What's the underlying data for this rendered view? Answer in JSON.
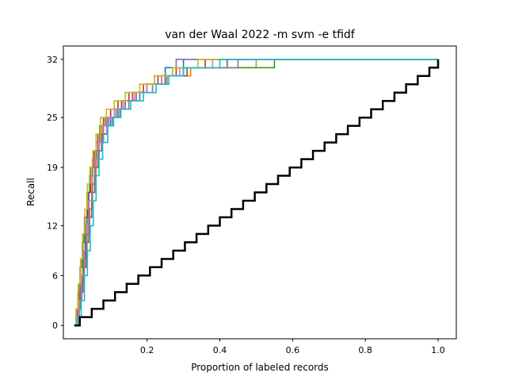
{
  "chart_data": {
    "type": "line",
    "title": "van der Waal 2022 -m svm -e tfidf",
    "xlabel": "Proportion of labeled records",
    "ylabel": "Recall",
    "xlim": [
      -0.03,
      1.05
    ],
    "ylim": [
      -1.6,
      33.6
    ],
    "x_ticks": [
      0.2,
      0.4,
      0.6,
      0.8,
      1.0
    ],
    "x_tick_labels": [
      "0.2",
      "0.4",
      "0.6",
      "0.8",
      "1.0"
    ],
    "y_ticks": [
      0,
      6,
      12,
      19,
      25,
      32
    ],
    "y_tick_labels": [
      "0",
      "6",
      "12",
      "19",
      "25",
      "32"
    ],
    "grid": false,
    "legend": "none",
    "total_relevant": 32,
    "series": [
      {
        "color": "#1f77b4",
        "points": [
          [
            0.0,
            0
          ],
          [
            0.005,
            1
          ],
          [
            0.01,
            2
          ],
          [
            0.015,
            4
          ],
          [
            0.02,
            6
          ],
          [
            0.025,
            8
          ],
          [
            0.03,
            11
          ],
          [
            0.035,
            14
          ],
          [
            0.04,
            16
          ],
          [
            0.05,
            18
          ],
          [
            0.06,
            20
          ],
          [
            0.065,
            22
          ],
          [
            0.08,
            24
          ],
          [
            0.1,
            25
          ],
          [
            0.12,
            26
          ],
          [
            0.15,
            27
          ],
          [
            0.18,
            28
          ],
          [
            0.2,
            29
          ],
          [
            0.22,
            30
          ],
          [
            0.25,
            31
          ],
          [
            0.3,
            32
          ],
          [
            1.0,
            32
          ]
        ]
      },
      {
        "color": "#ff7f0e",
        "points": [
          [
            0.0,
            0
          ],
          [
            0.007,
            2
          ],
          [
            0.014,
            4
          ],
          [
            0.02,
            6
          ],
          [
            0.027,
            9
          ],
          [
            0.033,
            12
          ],
          [
            0.04,
            15
          ],
          [
            0.05,
            18
          ],
          [
            0.06,
            21
          ],
          [
            0.075,
            24
          ],
          [
            0.09,
            25
          ],
          [
            0.11,
            26
          ],
          [
            0.14,
            27
          ],
          [
            0.17,
            28
          ],
          [
            0.2,
            29
          ],
          [
            0.24,
            30
          ],
          [
            0.32,
            31
          ],
          [
            0.5,
            32
          ],
          [
            1.0,
            32
          ]
        ]
      },
      {
        "color": "#2ca02c",
        "points": [
          [
            0.0,
            0
          ],
          [
            0.005,
            2
          ],
          [
            0.01,
            4
          ],
          [
            0.016,
            7
          ],
          [
            0.022,
            10
          ],
          [
            0.028,
            13
          ],
          [
            0.035,
            16
          ],
          [
            0.042,
            18
          ],
          [
            0.05,
            20
          ],
          [
            0.06,
            22
          ],
          [
            0.07,
            24
          ],
          [
            0.085,
            25
          ],
          [
            0.1,
            26
          ],
          [
            0.13,
            27
          ],
          [
            0.16,
            28
          ],
          [
            0.2,
            29
          ],
          [
            0.25,
            30
          ],
          [
            0.3,
            31
          ],
          [
            0.54,
            31
          ],
          [
            0.55,
            32
          ],
          [
            1.0,
            32
          ]
        ]
      },
      {
        "color": "#d62728",
        "points": [
          [
            0.0,
            0
          ],
          [
            0.006,
            2
          ],
          [
            0.012,
            5
          ],
          [
            0.018,
            8
          ],
          [
            0.024,
            11
          ],
          [
            0.03,
            13
          ],
          [
            0.037,
            16
          ],
          [
            0.045,
            19
          ],
          [
            0.055,
            21
          ],
          [
            0.065,
            23
          ],
          [
            0.08,
            25
          ],
          [
            0.1,
            26
          ],
          [
            0.12,
            27
          ],
          [
            0.15,
            28
          ],
          [
            0.19,
            29
          ],
          [
            0.23,
            30
          ],
          [
            0.28,
            31
          ],
          [
            0.36,
            32
          ],
          [
            1.0,
            32
          ]
        ]
      },
      {
        "color": "#9467bd",
        "points": [
          [
            0.0,
            0
          ],
          [
            0.007,
            1
          ],
          [
            0.014,
            3
          ],
          [
            0.021,
            5
          ],
          [
            0.028,
            8
          ],
          [
            0.035,
            11
          ],
          [
            0.042,
            14
          ],
          [
            0.05,
            17
          ],
          [
            0.058,
            20
          ],
          [
            0.068,
            22
          ],
          [
            0.08,
            24
          ],
          [
            0.095,
            25
          ],
          [
            0.115,
            26
          ],
          [
            0.14,
            27
          ],
          [
            0.17,
            28
          ],
          [
            0.2,
            29
          ],
          [
            0.24,
            30
          ],
          [
            0.27,
            31
          ],
          [
            0.28,
            32
          ],
          [
            1.0,
            32
          ]
        ]
      },
      {
        "color": "#8c564b",
        "points": [
          [
            0.0,
            0
          ],
          [
            0.008,
            2
          ],
          [
            0.016,
            4
          ],
          [
            0.024,
            7
          ],
          [
            0.032,
            10
          ],
          [
            0.04,
            13
          ],
          [
            0.048,
            16
          ],
          [
            0.056,
            19
          ],
          [
            0.065,
            21
          ],
          [
            0.075,
            23
          ],
          [
            0.09,
            25
          ],
          [
            0.11,
            26
          ],
          [
            0.13,
            27
          ],
          [
            0.16,
            28
          ],
          [
            0.2,
            29
          ],
          [
            0.25,
            30
          ],
          [
            0.31,
            31
          ],
          [
            0.42,
            32
          ],
          [
            1.0,
            32
          ]
        ]
      },
      {
        "color": "#e377c2",
        "points": [
          [
            0.0,
            0
          ],
          [
            0.006,
            1
          ],
          [
            0.013,
            3
          ],
          [
            0.02,
            6
          ],
          [
            0.027,
            9
          ],
          [
            0.034,
            12
          ],
          [
            0.041,
            15
          ],
          [
            0.049,
            18
          ],
          [
            0.057,
            20
          ],
          [
            0.066,
            22
          ],
          [
            0.078,
            24
          ],
          [
            0.092,
            25
          ],
          [
            0.11,
            26
          ],
          [
            0.135,
            27
          ],
          [
            0.165,
            28
          ],
          [
            0.2,
            29
          ],
          [
            0.24,
            30
          ],
          [
            0.29,
            31
          ],
          [
            0.38,
            32
          ],
          [
            1.0,
            32
          ]
        ]
      },
      {
        "color": "#7f7f7f",
        "points": [
          [
            0.0,
            0
          ],
          [
            0.009,
            2
          ],
          [
            0.018,
            5
          ],
          [
            0.026,
            8
          ],
          [
            0.034,
            11
          ],
          [
            0.042,
            14
          ],
          [
            0.05,
            17
          ],
          [
            0.058,
            19
          ],
          [
            0.067,
            21
          ],
          [
            0.077,
            23
          ],
          [
            0.09,
            24
          ],
          [
            0.105,
            25
          ],
          [
            0.125,
            26
          ],
          [
            0.15,
            27
          ],
          [
            0.18,
            28
          ],
          [
            0.215,
            29
          ],
          [
            0.255,
            30
          ],
          [
            0.3,
            31
          ],
          [
            0.45,
            32
          ],
          [
            1.0,
            32
          ]
        ]
      },
      {
        "color": "#bcbd22",
        "points": [
          [
            0.0,
            0
          ],
          [
            0.005,
            2
          ],
          [
            0.011,
            5
          ],
          [
            0.017,
            8
          ],
          [
            0.023,
            11
          ],
          [
            0.029,
            14
          ],
          [
            0.036,
            17
          ],
          [
            0.043,
            19
          ],
          [
            0.051,
            21
          ],
          [
            0.06,
            23
          ],
          [
            0.072,
            25
          ],
          [
            0.088,
            26
          ],
          [
            0.11,
            27
          ],
          [
            0.14,
            28
          ],
          [
            0.18,
            29
          ],
          [
            0.22,
            30
          ],
          [
            0.27,
            31
          ],
          [
            0.34,
            32
          ],
          [
            1.0,
            32
          ]
        ]
      },
      {
        "color": "#17becf",
        "points": [
          [
            0.0,
            0
          ],
          [
            0.01,
            1
          ],
          [
            0.019,
            3
          ],
          [
            0.028,
            6
          ],
          [
            0.036,
            9
          ],
          [
            0.044,
            12
          ],
          [
            0.052,
            15
          ],
          [
            0.06,
            18
          ],
          [
            0.068,
            20
          ],
          [
            0.078,
            22
          ],
          [
            0.092,
            24
          ],
          [
            0.108,
            25
          ],
          [
            0.128,
            26
          ],
          [
            0.155,
            27
          ],
          [
            0.19,
            28
          ],
          [
            0.225,
            29
          ],
          [
            0.26,
            30
          ],
          [
            0.3,
            31
          ],
          [
            0.4,
            32
          ],
          [
            1.0,
            32
          ]
        ]
      },
      {
        "color": "#000000",
        "points": [
          [
            0.0,
            0
          ],
          [
            0.015,
            1
          ],
          [
            0.048,
            2
          ],
          [
            0.08,
            3
          ],
          [
            0.112,
            4
          ],
          [
            0.144,
            5
          ],
          [
            0.176,
            6
          ],
          [
            0.208,
            7
          ],
          [
            0.24,
            8
          ],
          [
            0.272,
            9
          ],
          [
            0.304,
            10
          ],
          [
            0.336,
            11
          ],
          [
            0.368,
            12
          ],
          [
            0.4,
            13
          ],
          [
            0.432,
            14
          ],
          [
            0.464,
            15
          ],
          [
            0.496,
            16
          ],
          [
            0.528,
            17
          ],
          [
            0.56,
            18
          ],
          [
            0.592,
            19
          ],
          [
            0.624,
            20
          ],
          [
            0.656,
            21
          ],
          [
            0.688,
            22
          ],
          [
            0.72,
            23
          ],
          [
            0.752,
            24
          ],
          [
            0.784,
            25
          ],
          [
            0.816,
            26
          ],
          [
            0.848,
            27
          ],
          [
            0.88,
            28
          ],
          [
            0.912,
            29
          ],
          [
            0.944,
            30
          ],
          [
            0.976,
            31
          ],
          [
            1.0,
            32
          ]
        ]
      }
    ]
  }
}
